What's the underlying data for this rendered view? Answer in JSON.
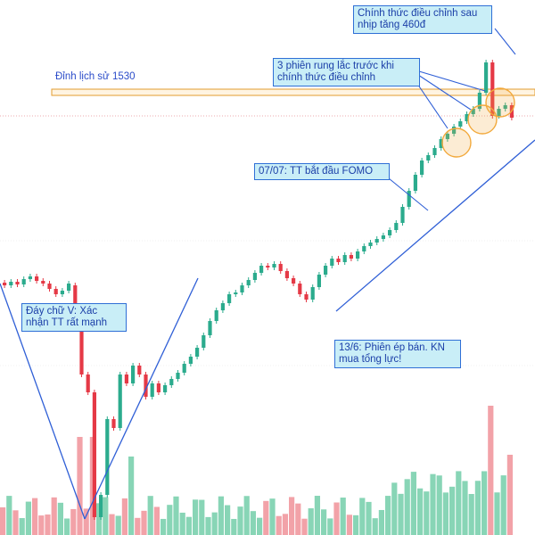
{
  "chart_data": {
    "type": "candlestick",
    "price_levels": {
      "ath": 1530
    },
    "colors": {
      "up": "#2bab8d",
      "down": "#e53946",
      "volume_up": "#88d5b6",
      "volume_down": "#f2a2a8",
      "trendline": "#2f5fd6",
      "band_border": "#e39c2f",
      "band_fill": "#fff4e2",
      "circle": "#f2a93c"
    },
    "annotations": {
      "ath_label": "Đỉnh lịch sử 1530",
      "v_shape": "Đáy chữ V: Xác nhận TT rất mạnh",
      "fomo": "07/07: TT bắt đầu FOMO",
      "shakeout": "3 phiên rung lắc trước khi chính thức điều chỉnh",
      "correction": "Chính thức điều chỉnh sau nhịp tăng 460đ",
      "june13": "13/6: Phiên ép bán. KN mua tổng lực!"
    }
  }
}
